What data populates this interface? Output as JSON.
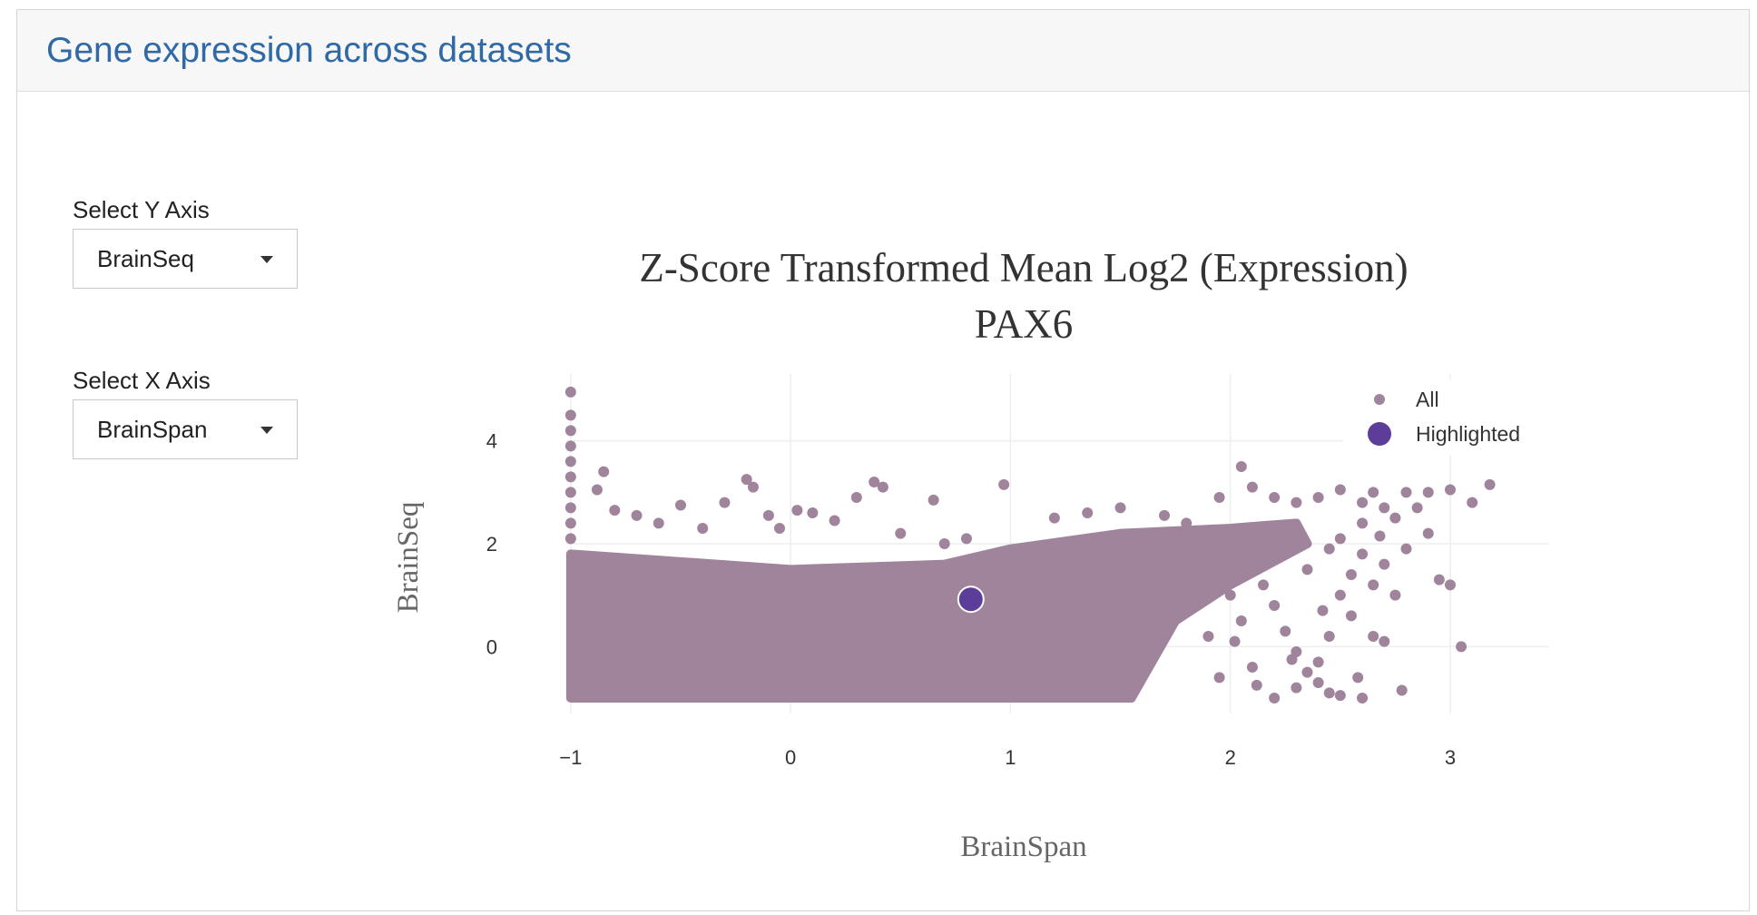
{
  "panel": {
    "title": "Gene expression across datasets"
  },
  "controls": {
    "y_axis": {
      "label": "Select Y Axis",
      "value": "BrainSeq"
    },
    "x_axis": {
      "label": "Select X Axis",
      "value": "BrainSpan"
    }
  },
  "colors": {
    "title_blue": "#2f6aa6",
    "all_points": "#a0849c",
    "highlighted": "#5c3d99",
    "grid": "#eeeeee"
  },
  "chart_data": {
    "type": "scatter",
    "title": "Z-Score Transformed Mean Log2 (Expression)",
    "subtitle": "PAX6",
    "xlabel": "BrainSpan",
    "ylabel": "BrainSeq",
    "xlim": [
      -1.02,
      3.45
    ],
    "ylim": [
      -1.3,
      5.3
    ],
    "x_ticks": [
      -1,
      0,
      1,
      2,
      3
    ],
    "x_tick_labels": [
      "−1",
      "0",
      "1",
      "2",
      "3"
    ],
    "y_ticks": [
      0,
      2,
      4
    ],
    "y_tick_labels": [
      "0",
      "2",
      "4"
    ],
    "grid": true,
    "legend_position": "top-right",
    "series": [
      {
        "name": "All",
        "color": "#a0849c",
        "dense_band": {
          "y_min": -1.0,
          "upper_edge": [
            [
              -1,
              1.8
            ],
            [
              0,
              1.5
            ],
            [
              0.7,
              1.6
            ],
            [
              1.0,
              1.9
            ],
            [
              1.5,
              2.2
            ],
            [
              2.0,
              2.3
            ],
            [
              2.3,
              2.4
            ]
          ],
          "right_edge": [
            [
              -1.0,
              1.55
            ],
            [
              0.5,
              1.75
            ],
            [
              1.2,
              2.0
            ],
            [
              2.0,
              2.35
            ]
          ]
        },
        "points": [
          [
            -1,
            4.95
          ],
          [
            -1,
            4.5
          ],
          [
            -1,
            4.2
          ],
          [
            -1,
            3.9
          ],
          [
            -1,
            3.6
          ],
          [
            -1,
            3.3
          ],
          [
            -1,
            3.0
          ],
          [
            -1,
            2.7
          ],
          [
            -1,
            2.4
          ],
          [
            -1,
            2.1
          ],
          [
            -0.85,
            3.4
          ],
          [
            -0.88,
            3.05
          ],
          [
            -0.8,
            2.65
          ],
          [
            -0.7,
            2.55
          ],
          [
            -0.6,
            2.4
          ],
          [
            -0.5,
            2.75
          ],
          [
            -0.4,
            2.3
          ],
          [
            -0.3,
            2.8
          ],
          [
            -0.2,
            3.25
          ],
          [
            -0.17,
            3.1
          ],
          [
            -0.1,
            2.55
          ],
          [
            -0.05,
            2.3
          ],
          [
            0.03,
            2.65
          ],
          [
            0.1,
            2.6
          ],
          [
            0.2,
            2.45
          ],
          [
            0.3,
            2.9
          ],
          [
            0.38,
            3.2
          ],
          [
            0.42,
            3.1
          ],
          [
            0.5,
            2.2
          ],
          [
            0.65,
            2.85
          ],
          [
            0.97,
            3.15
          ],
          [
            0.7,
            2.0
          ],
          [
            0.8,
            2.1
          ],
          [
            1.2,
            2.5
          ],
          [
            1.35,
            2.6
          ],
          [
            1.5,
            2.7
          ],
          [
            1.7,
            2.55
          ],
          [
            1.8,
            2.4
          ],
          [
            1.95,
            2.9
          ],
          [
            2.05,
            3.5
          ],
          [
            2.1,
            3.1
          ],
          [
            2.2,
            2.9
          ],
          [
            2.3,
            2.8
          ],
          [
            2.4,
            2.9
          ],
          [
            2.5,
            3.05
          ],
          [
            2.6,
            2.8
          ],
          [
            2.65,
            3.0
          ],
          [
            2.7,
            2.7
          ],
          [
            2.75,
            2.5
          ],
          [
            2.8,
            3.0
          ],
          [
            2.85,
            2.7
          ],
          [
            2.9,
            3.0
          ],
          [
            3.0,
            3.05
          ],
          [
            3.1,
            2.8
          ],
          [
            3.18,
            3.15
          ],
          [
            2.9,
            2.2
          ],
          [
            2.95,
            1.3
          ],
          [
            2.75,
            1.0
          ],
          [
            3.0,
            1.2
          ],
          [
            3.05,
            0.0
          ],
          [
            2.7,
            0.1
          ],
          [
            2.65,
            0.2
          ],
          [
            2.78,
            -0.85
          ],
          [
            2.6,
            -1.0
          ],
          [
            2.5,
            -0.95
          ],
          [
            2.45,
            -0.9
          ],
          [
            2.4,
            -0.7
          ],
          [
            2.35,
            -0.5
          ],
          [
            2.3,
            -0.1
          ],
          [
            2.25,
            0.3
          ],
          [
            2.2,
            0.8
          ],
          [
            2.15,
            1.2
          ],
          [
            2.1,
            1.6
          ],
          [
            2.55,
            1.4
          ],
          [
            2.5,
            1.0
          ],
          [
            2.6,
            1.8
          ],
          [
            2.65,
            1.2
          ],
          [
            2.7,
            1.6
          ],
          [
            2.8,
            1.9
          ],
          [
            2.55,
            0.6
          ],
          [
            2.45,
            0.2
          ],
          [
            2.4,
            -0.3
          ],
          [
            2.3,
            -0.8
          ],
          [
            2.2,
            -1.0
          ],
          [
            2.1,
            -0.4
          ],
          [
            2.05,
            0.5
          ],
          [
            2.0,
            1.0
          ],
          [
            1.95,
            -0.6
          ],
          [
            1.9,
            0.2
          ],
          [
            1.85,
            1.4
          ],
          [
            2.35,
            1.5
          ],
          [
            2.45,
            1.9
          ],
          [
            2.6,
            2.4
          ],
          [
            2.68,
            2.15
          ],
          [
            2.25,
            2.2
          ],
          [
            2.5,
            2.1
          ],
          [
            2.58,
            -0.6
          ],
          [
            2.42,
            0.7
          ],
          [
            2.28,
            -0.25
          ],
          [
            2.12,
            -0.75
          ],
          [
            2.02,
            0.1
          ]
        ]
      },
      {
        "name": "Highlighted",
        "color": "#5c3d99",
        "points": [
          [
            0.82,
            0.92
          ]
        ]
      }
    ]
  }
}
